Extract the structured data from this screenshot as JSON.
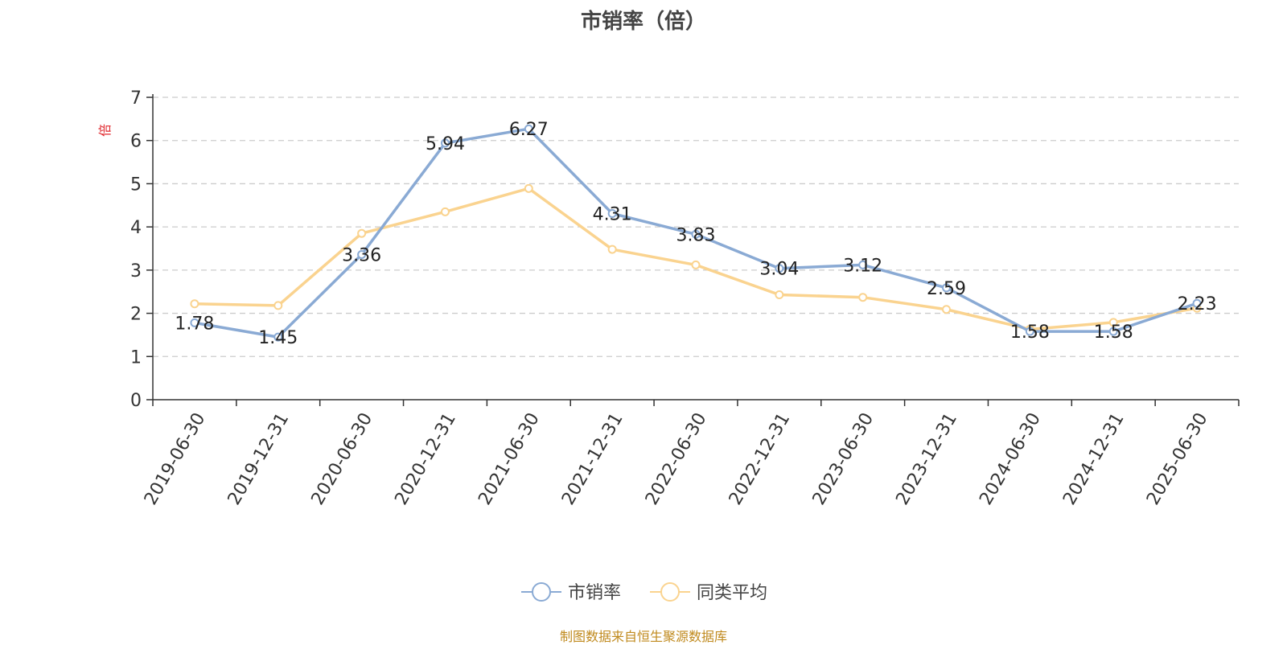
{
  "chart_data": {
    "type": "line",
    "title": "市销率（倍）",
    "ylabel": "倍",
    "xlabel": "",
    "ylim": [
      0,
      7
    ],
    "yticks": [
      0,
      1,
      2,
      3,
      4,
      5,
      6,
      7
    ],
    "grid": true,
    "legend_position": "bottom-center",
    "categories": [
      "2019-06-30",
      "2019-12-31",
      "2020-06-30",
      "2020-12-31",
      "2021-06-30",
      "2021-12-31",
      "2022-06-30",
      "2022-12-31",
      "2023-06-30",
      "2023-12-31",
      "2024-06-30",
      "2024-12-31",
      "2025-06-30"
    ],
    "series": [
      {
        "name": "市销率",
        "color": "#8aaad4",
        "show_labels": true,
        "values": [
          1.78,
          1.45,
          3.36,
          5.94,
          6.27,
          4.31,
          3.83,
          3.04,
          3.12,
          2.59,
          1.58,
          1.58,
          2.23
        ]
      },
      {
        "name": "同类平均",
        "color": "#fad38f",
        "show_labels": false,
        "values": [
          2.22,
          2.18,
          3.85,
          4.35,
          4.89,
          3.48,
          3.12,
          2.43,
          2.37,
          2.09,
          1.63,
          1.79,
          2.12
        ]
      }
    ]
  },
  "footer": {
    "source_text": "制图数据来自恒生聚源数据库"
  },
  "colors": {
    "axis": "#333333",
    "grid": "#cccccc",
    "ylabel": "#e0282e",
    "footer": "#c08a1e"
  }
}
